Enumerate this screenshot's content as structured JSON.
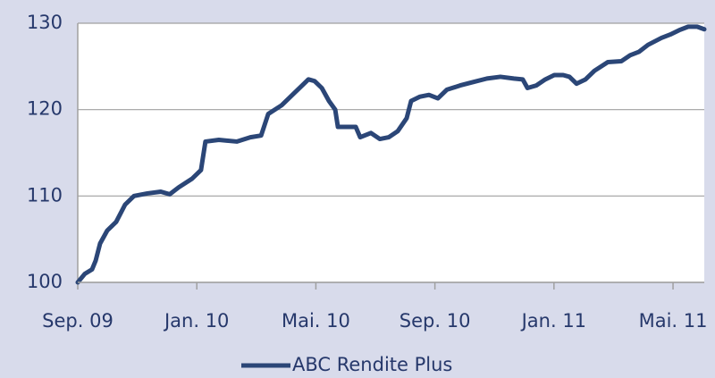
{
  "chart_data": {
    "type": "line",
    "x": [
      0,
      0.24,
      0.48,
      0.6,
      0.75,
      0.99,
      1.29,
      1.59,
      1.89,
      2.34,
      2.79,
      3.09,
      3.39,
      3.84,
      4.14,
      4.29,
      4.74,
      5.35,
      5.8,
      6.16,
      6.4,
      6.85,
      7.3,
      7.6,
      7.75,
      7.96,
      8.2,
      8.44,
      8.65,
      8.74,
      9.1,
      9.34,
      9.49,
      9.85,
      10.15,
      10.45,
      10.75,
      11.05,
      11.2,
      11.5,
      11.8,
      12.1,
      12.4,
      12.85,
      13.3,
      13.75,
      14.2,
      14.65,
      14.95,
      15.11,
      15.41,
      15.71,
      16.01,
      16.31,
      16.52,
      16.76,
      17.06,
      17.36,
      17.81,
      18.26,
      18.56,
      18.86,
      19.16,
      19.61,
      19.91,
      20.21,
      20.51,
      20.81,
      21.05
    ],
    "series": [
      {
        "name": "ABC Rendite Plus",
        "color": "#2b4677",
        "values": [
          100,
          101,
          101.5,
          102.5,
          104.5,
          106,
          107,
          109,
          110,
          110.3,
          110.5,
          110.2,
          111,
          112,
          113,
          116.3,
          116.5,
          116.3,
          116.8,
          117,
          119.5,
          120.5,
          122,
          123,
          123.5,
          123.3,
          122.5,
          121,
          120,
          118,
          118,
          118,
          116.8,
          117.3,
          116.6,
          116.8,
          117.5,
          119,
          121,
          121.5,
          121.7,
          121.3,
          122.3,
          122.8,
          123.2,
          123.6,
          123.8,
          123.6,
          123.5,
          122.5,
          122.8,
          123.5,
          124,
          124,
          123.8,
          123,
          123.5,
          124.5,
          125.5,
          125.6,
          126.3,
          126.7,
          127.5,
          128.3,
          128.7,
          129.2,
          129.6,
          129.6,
          129.3
        ]
      }
    ],
    "xlim": [
      0,
      21.05
    ],
    "xticks": [
      {
        "value": 0,
        "label": "Sep. 09"
      },
      {
        "value": 4,
        "label": "Jan. 10"
      },
      {
        "value": 8,
        "label": "Mai. 10"
      },
      {
        "value": 12,
        "label": "Sep. 10"
      },
      {
        "value": 16,
        "label": "Jan. 11"
      },
      {
        "value": 20,
        "label": "Mai. 11"
      }
    ],
    "ylim": [
      100,
      130
    ],
    "yticks": [
      100,
      110,
      120,
      130
    ],
    "grid": true,
    "legend": "bottom"
  }
}
